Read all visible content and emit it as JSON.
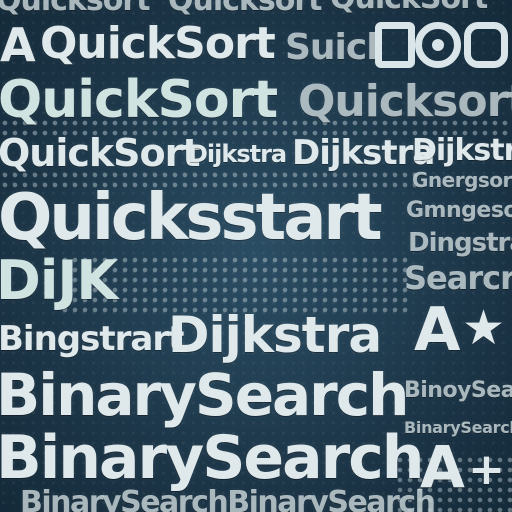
{
  "words": {
    "r0_a": "Quicksort",
    "r0_b": "Quicksort",
    "r0_c": "QuickSort",
    "r1_prefix": "A",
    "r1_main": "QuickSort",
    "r1_b": "Suicl",
    "r2_a": "QuickSort",
    "r2_b": "Quicksort",
    "r3_a": "QuickSort",
    "r3_b": "Dijkstra",
    "r3_c": "Dijkstra",
    "r3_d": "Dijkstra",
    "r4_a": "Gnergsorn",
    "r5_main": "Quicksstart",
    "r5_b": "Gmngesor",
    "r6_a": "Dingstrart",
    "r7_a": "DiJK",
    "r7_b": "Searcrh",
    "r8_a": "Bingstrart",
    "r8_b": "Dijkstra",
    "r8_c": "A",
    "r8_star": "★",
    "r9_main": "BinarySearch",
    "r9_b": "BinoySearch",
    "r10_a": "BinarySearch",
    "r11_main": "BinarySearch",
    "r11_a": "A",
    "r11_plus": "+",
    "r12_a": "BinarySearchBinarySearch"
  },
  "colors": {
    "background": "#1f3a4d",
    "text": "#dfe9ec"
  },
  "icons": [
    "square-outline-icon",
    "circle-target-icon",
    "rounded-bracket-icon",
    "star-icon"
  ]
}
